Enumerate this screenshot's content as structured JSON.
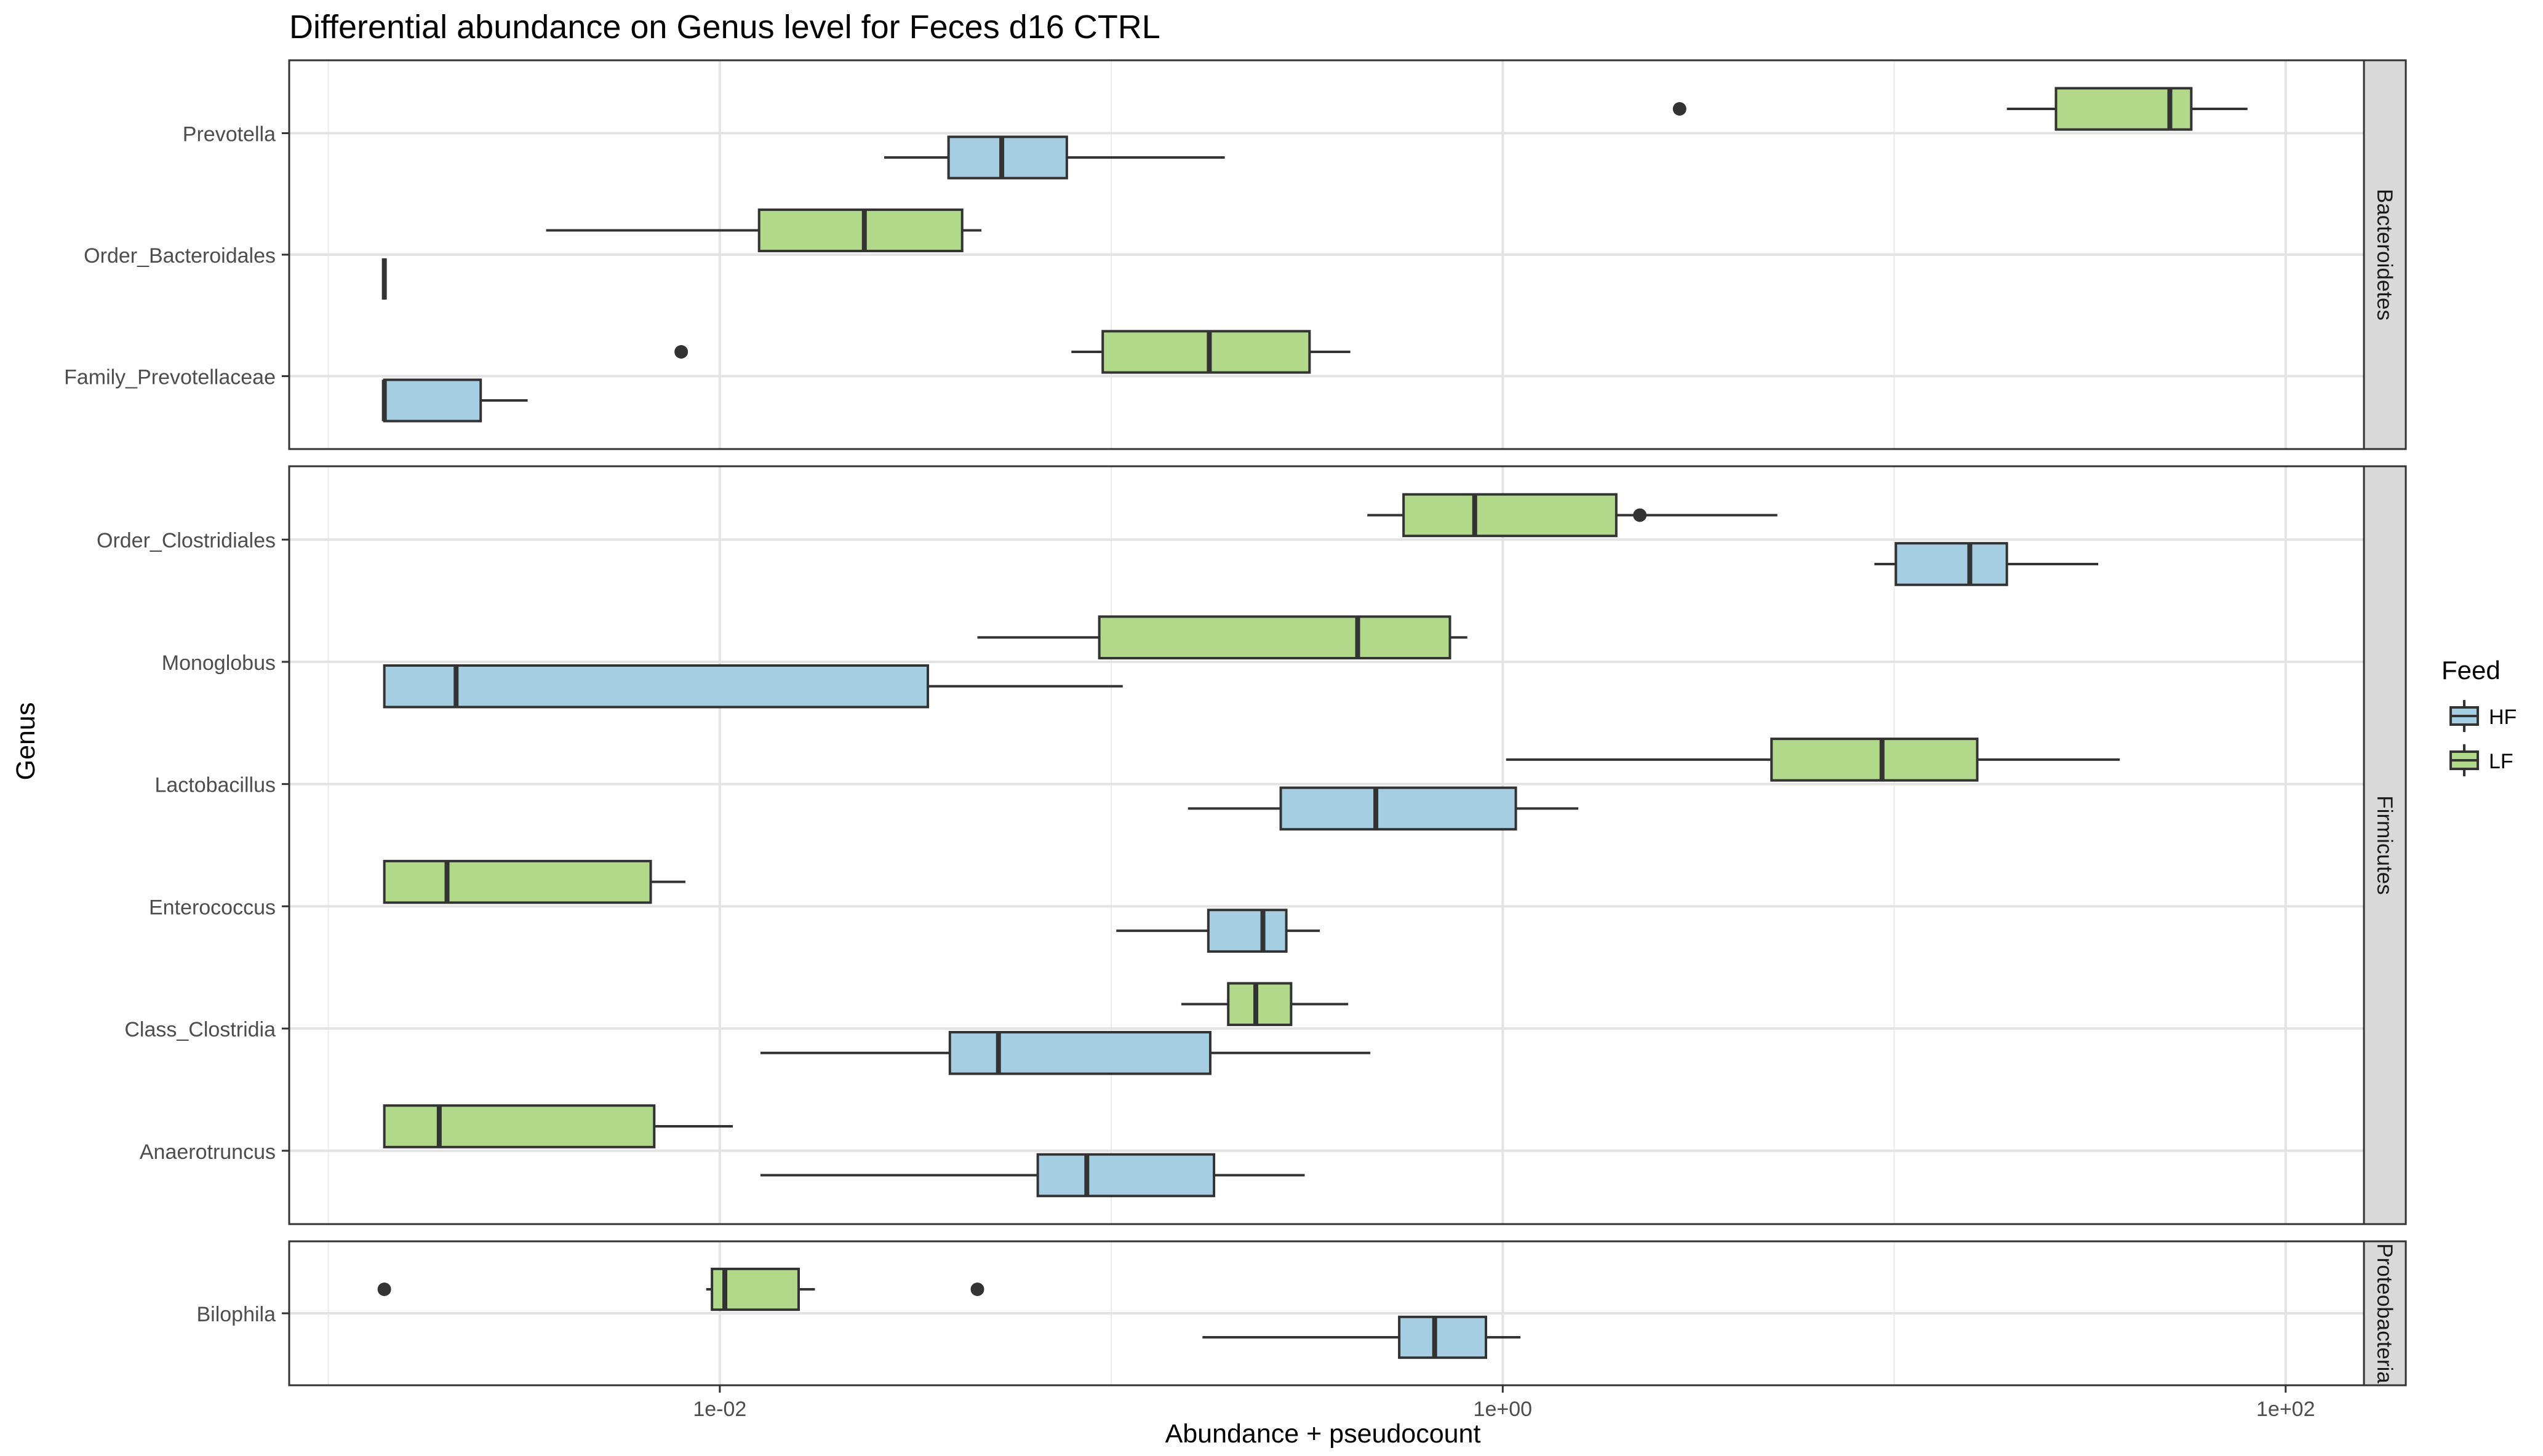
{
  "chart_data": {
    "type": "boxplot",
    "title": "Differential abundance on Genus level for Feces d16 CTRL",
    "xlabel": "Abundance + pseudocount",
    "ylabel": "Genus",
    "x_scale": "log10",
    "x_ticks": [
      "1e-02",
      "1e+00",
      "1e+02"
    ],
    "xlim_log10": [
      -3.1,
      2.2
    ],
    "legend": {
      "title": "Feed",
      "position": "right",
      "entries": [
        {
          "name": "HF",
          "color": "#a6cee3"
        },
        {
          "name": "LF",
          "color": "#b2d98a"
        }
      ]
    },
    "grid": true,
    "panels": [
      {
        "facet": "Bacteroidetes",
        "categories": [
          "Prevotella",
          "Order_Bacteroidales",
          "Family_Prevotellaceae"
        ],
        "boxes": [
          {
            "genus": "Prevotella",
            "feed": "HF",
            "min": 0.0263,
            "q1": 0.0384,
            "median": 0.0525,
            "q3": 0.077,
            "max": 0.195,
            "outliers": []
          },
          {
            "genus": "Prevotella",
            "feed": "LF",
            "min": 19.4,
            "q1": 25.9,
            "median": 50.6,
            "q3": 57.4,
            "max": 79.9,
            "outliers": [
              2.83
            ]
          },
          {
            "genus": "Order_Bacteroidales",
            "feed": "HF",
            "min": 0.00139,
            "q1": 0.00139,
            "median": 0.00139,
            "q3": 0.00139,
            "max": 0.00139,
            "outliers": []
          },
          {
            "genus": "Order_Bacteroidales",
            "feed": "LF",
            "min": 0.0036,
            "q1": 0.0126,
            "median": 0.0234,
            "q3": 0.0416,
            "max": 0.0466,
            "outliers": []
          },
          {
            "genus": "Family_Prevotellaceae",
            "feed": "HF",
            "min": 0.00139,
            "q1": 0.00139,
            "median": 0.00139,
            "q3": 0.00245,
            "max": 0.00323,
            "outliers": []
          },
          {
            "genus": "Family_Prevotellaceae",
            "feed": "LF",
            "min": 0.0791,
            "q1": 0.0951,
            "median": 0.178,
            "q3": 0.321,
            "max": 0.408,
            "outliers": [
              0.00797
            ]
          }
        ]
      },
      {
        "facet": "Firmicutes",
        "categories": [
          "Order_Clostridiales",
          "Monoglobus",
          "Lactobacillus",
          "Enterococcus",
          "Class_Clostridia",
          "Anaerotruncus"
        ],
        "boxes": [
          {
            "genus": "Order_Clostridiales",
            "feed": "HF",
            "min": 8.9,
            "q1": 10.1,
            "median": 15.6,
            "q3": 19.4,
            "max": 33.2,
            "outliers": []
          },
          {
            "genus": "Order_Clostridiales",
            "feed": "LF",
            "min": 0.451,
            "q1": 0.558,
            "median": 0.848,
            "q3": 1.95,
            "max": 5.03,
            "outliers": [
              2.24
            ]
          },
          {
            "genus": "Monoglobus",
            "feed": "HF",
            "min": 0.00139,
            "q1": 0.00139,
            "median": 0.00212,
            "q3": 0.034,
            "max": 0.107,
            "outliers": []
          },
          {
            "genus": "Monoglobus",
            "feed": "LF",
            "min": 0.0455,
            "q1": 0.0932,
            "median": 0.426,
            "q3": 0.733,
            "max": 0.812,
            "outliers": []
          },
          {
            "genus": "Lactobacillus",
            "feed": "HF",
            "min": 0.157,
            "q1": 0.271,
            "median": 0.474,
            "q3": 1.08,
            "max": 1.56,
            "outliers": []
          },
          {
            "genus": "Lactobacillus",
            "feed": "LF",
            "min": 1.02,
            "q1": 4.86,
            "median": 9.31,
            "q3": 16.3,
            "max": 37.7,
            "outliers": []
          },
          {
            "genus": "Enterococcus",
            "feed": "HF",
            "min": 0.103,
            "q1": 0.177,
            "median": 0.244,
            "q3": 0.28,
            "max": 0.341,
            "outliers": []
          },
          {
            "genus": "Enterococcus",
            "feed": "LF",
            "min": 0.00139,
            "q1": 0.00139,
            "median": 0.00201,
            "q3": 0.00666,
            "max": 0.00817,
            "outliers": []
          },
          {
            "genus": "Class_Clostridia",
            "feed": "HF",
            "min": 0.0127,
            "q1": 0.0387,
            "median": 0.0515,
            "q3": 0.179,
            "max": 0.459,
            "outliers": []
          },
          {
            "genus": "Class_Clostridia",
            "feed": "LF",
            "min": 0.151,
            "q1": 0.199,
            "median": 0.234,
            "q3": 0.288,
            "max": 0.403,
            "outliers": []
          },
          {
            "genus": "Anaerotruncus",
            "feed": "HF",
            "min": 0.0127,
            "q1": 0.0649,
            "median": 0.0866,
            "q3": 0.183,
            "max": 0.312,
            "outliers": []
          },
          {
            "genus": "Anaerotruncus",
            "feed": "LF",
            "min": 0.00139,
            "q1": 0.00139,
            "median": 0.00192,
            "q3": 0.0068,
            "max": 0.0108,
            "outliers": []
          }
        ]
      },
      {
        "facet": "Proteobacteria",
        "categories": [
          "Bilophila"
        ],
        "boxes": [
          {
            "genus": "Bilophila",
            "feed": "HF",
            "min": 0.171,
            "q1": 0.544,
            "median": 0.67,
            "q3": 0.906,
            "max": 1.11,
            "outliers": []
          },
          {
            "genus": "Bilophila",
            "feed": "LF",
            "min": 0.00923,
            "q1": 0.00955,
            "median": 0.0103,
            "q3": 0.0159,
            "max": 0.0175,
            "outliers": [
              0.00139,
              0.0455
            ]
          }
        ]
      }
    ]
  }
}
